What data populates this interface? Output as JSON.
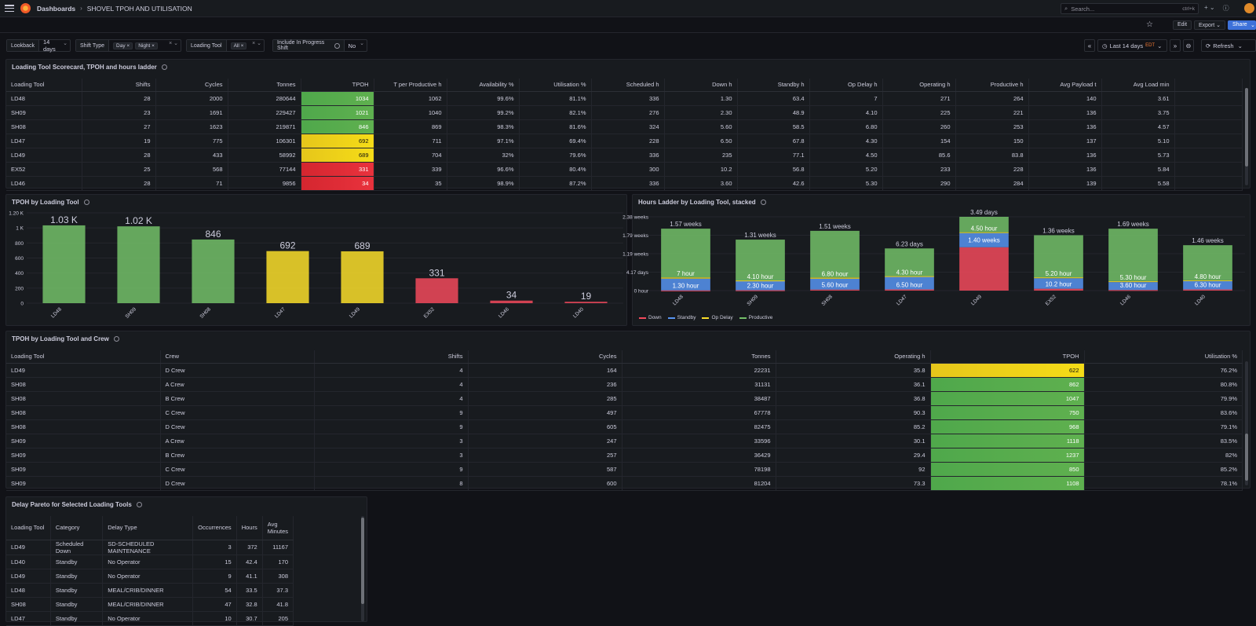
{
  "nav": {
    "crumb_root": "Dashboards",
    "crumb_page": "SHOVEL TPOH AND UTILISATION",
    "search_placeholder": "Search...",
    "search_kbd": "ctrl+k"
  },
  "toolbar": {
    "edit": "Edit",
    "export": "Export",
    "share": "Share"
  },
  "variables": {
    "lookback": {
      "label": "Lookback",
      "value": "14 days"
    },
    "shift_type": {
      "label": "Shift Type",
      "values": [
        "Day",
        "Night"
      ]
    },
    "loading_tool": {
      "label": "Loading Tool",
      "values": [
        "All"
      ]
    },
    "in_progress": {
      "label": "Include In Progress Shift",
      "value": "No"
    }
  },
  "time": {
    "range": "Last 14 days",
    "tz": "EDT",
    "refresh": "Refresh"
  },
  "scorecard": {
    "title": "Loading Tool Scorecard, TPOH and hours ladder",
    "columns": [
      "Loading Tool",
      "Shifts",
      "Cycles",
      "Tonnes",
      "TPOH",
      "T per Productive h",
      "Availability %",
      "Utilisation %",
      "Scheduled h",
      "Down h",
      "Standby h",
      "Op Delay h",
      "Operating h",
      "Productive h",
      "Avg Payload t",
      "Avg Load min"
    ],
    "rows": [
      [
        "LD48",
        "28",
        "2000",
        "280644",
        "1034",
        "1062",
        "99.6%",
        "81.1%",
        "336",
        "1.30",
        "63.4",
        "7",
        "271",
        "264",
        "140",
        "3.61"
      ],
      [
        "SH09",
        "23",
        "1691",
        "229427",
        "1021",
        "1040",
        "99.2%",
        "82.1%",
        "276",
        "2.30",
        "48.9",
        "4.10",
        "225",
        "221",
        "136",
        "3.75"
      ],
      [
        "SH08",
        "27",
        "1623",
        "219871",
        "846",
        "869",
        "98.3%",
        "81.6%",
        "324",
        "5.60",
        "58.5",
        "6.80",
        "260",
        "253",
        "136",
        "4.57"
      ],
      [
        "LD47",
        "19",
        "775",
        "106301",
        "692",
        "711",
        "97.1%",
        "69.4%",
        "228",
        "6.50",
        "67.8",
        "4.30",
        "154",
        "150",
        "137",
        "5.10"
      ],
      [
        "LD49",
        "28",
        "433",
        "58992",
        "689",
        "704",
        "32%",
        "79.6%",
        "336",
        "235",
        "77.1",
        "4.50",
        "85.6",
        "83.8",
        "136",
        "5.73"
      ],
      [
        "EX52",
        "25",
        "568",
        "77144",
        "331",
        "339",
        "96.6%",
        "80.4%",
        "300",
        "10.2",
        "56.8",
        "5.20",
        "233",
        "228",
        "136",
        "5.84"
      ],
      [
        "LD46",
        "28",
        "71",
        "9856",
        "34",
        "35",
        "98.9%",
        "87.2%",
        "336",
        "3.60",
        "42.6",
        "5.30",
        "290",
        "284",
        "139",
        "5.58"
      ]
    ],
    "tpoh_colors": [
      "g",
      "g",
      "g",
      "y",
      "y",
      "r",
      "r"
    ]
  },
  "tpoh_chart": {
    "title": "TPOH by Loading Tool",
    "chart_data": {
      "type": "bar",
      "categories": [
        "LD48",
        "SH09",
        "SH08",
        "LD47",
        "LD49",
        "EX52",
        "LD46",
        "LD40"
      ],
      "values": [
        1034,
        1021,
        846,
        692,
        689,
        331,
        34,
        19
      ],
      "labels": [
        "1.03 K",
        "1.02 K",
        "846",
        "692",
        "689",
        "331",
        "34",
        "19"
      ],
      "colors": [
        "#73bf69",
        "#73bf69",
        "#73bf69",
        "#fade2a",
        "#fade2a",
        "#f2495c",
        "#f2495c",
        "#f2495c"
      ],
      "yticks": [
        "0",
        "200",
        "400",
        "600",
        "800",
        "1 K",
        "1.20 K"
      ],
      "ylim": [
        0,
        1200
      ]
    }
  },
  "hours_chart": {
    "title": "Hours Ladder by Loading Tool, stacked",
    "chart_data": {
      "type": "bar",
      "stacked": true,
      "categories": [
        "LD48",
        "SH09",
        "SH08",
        "LD47",
        "LD49",
        "EX52",
        "LD46",
        "LD40"
      ],
      "series": [
        {
          "name": "Down",
          "color": "#f2495c",
          "values": [
            1.3,
            2.3,
            5.6,
            6.5,
            235,
            10.2,
            3.6,
            6.3
          ]
        },
        {
          "name": "Standby",
          "color": "#5794f2",
          "values": [
            63.4,
            48.9,
            58.5,
            67.8,
            77.1,
            56.8,
            42.6,
            45
          ]
        },
        {
          "name": "Op Delay",
          "color": "#fade2a",
          "values": [
            7,
            4.1,
            6.8,
            4.3,
            4.5,
            5.2,
            5.3,
            4.8
          ]
        },
        {
          "name": "Productive",
          "color": "#73bf69",
          "values": [
            264,
            221,
            253,
            150,
            83.8,
            228,
            284,
            190
          ]
        }
      ],
      "totals": [
        "1.57 weeks",
        "1.31 weeks",
        "1.51 weeks",
        "6.23 days",
        "3.49 days",
        "1.36 weeks",
        "1.69 weeks",
        "1.46 weeks"
      ],
      "seg_labels": [
        [
          "1.30 hour",
          "",
          "7 hour"
        ],
        [
          "2.30 hour",
          "",
          "4.10 hour"
        ],
        [
          "5.60 hour",
          "",
          "6.80 hour"
        ],
        [
          "6.50 hour",
          "",
          "4.30 hour"
        ],
        [
          "",
          "1.40 weeks",
          "4.50 hour"
        ],
        [
          "10.2 hour",
          "",
          "5.20 hour"
        ],
        [
          "3.60 hour",
          "",
          "5.30 hour"
        ],
        [
          "6.30 hour",
          "",
          "4.80 hour"
        ]
      ],
      "yticks": [
        "0 hour",
        "4.17 days",
        "1.19 weeks",
        "1.79 weeks",
        "2.38 weeks"
      ],
      "ylim": [
        0,
        400
      ]
    }
  },
  "crew": {
    "title": "TPOH by Loading Tool and Crew",
    "columns": [
      "Loading Tool",
      "Crew",
      "Shifts",
      "Cycles",
      "Tonnes",
      "Operating h",
      "TPOH",
      "Utilisation %"
    ],
    "rows": [
      [
        "LD49",
        "D Crew",
        "4",
        "164",
        "22231",
        "35.8",
        "622",
        "76.2%"
      ],
      [
        "SH08",
        "A Crew",
        "4",
        "236",
        "31131",
        "36.1",
        "862",
        "80.8%"
      ],
      [
        "SH08",
        "B Crew",
        "4",
        "285",
        "38487",
        "36.8",
        "1047",
        "79.9%"
      ],
      [
        "SH08",
        "C Crew",
        "9",
        "497",
        "67778",
        "90.3",
        "750",
        "83.6%"
      ],
      [
        "SH08",
        "D Crew",
        "9",
        "605",
        "82475",
        "85.2",
        "968",
        "79.1%"
      ],
      [
        "SH09",
        "A Crew",
        "3",
        "247",
        "33596",
        "30.1",
        "1118",
        "83.5%"
      ],
      [
        "SH09",
        "B Crew",
        "3",
        "257",
        "36429",
        "29.4",
        "1237",
        "82%"
      ],
      [
        "SH09",
        "C Crew",
        "9",
        "587",
        "78198",
        "92",
        "850",
        "85.2%"
      ],
      [
        "SH09",
        "D Crew",
        "8",
        "600",
        "81204",
        "73.3",
        "1108",
        "78.1%"
      ]
    ],
    "tpoh_colors": [
      "y",
      "g",
      "g",
      "g",
      "g",
      "g",
      "g",
      "g",
      "g"
    ]
  },
  "pareto": {
    "title": "Delay Pareto for Selected Loading Tools",
    "columns": [
      "Loading Tool",
      "Category",
      "Delay Type",
      "Occurrences",
      "Hours",
      "Avg Minutes"
    ],
    "rows": [
      [
        "LD49",
        "Scheduled Down",
        "SD-SCHEDULED MAINTENANCE",
        "3",
        "372",
        "11167"
      ],
      [
        "LD40",
        "Standby",
        "No Operator",
        "15",
        "42.4",
        "170"
      ],
      [
        "LD49",
        "Standby",
        "No Operator",
        "9",
        "41.1",
        "308"
      ],
      [
        "LD48",
        "Standby",
        "MEAL/CRIB/DINNER",
        "54",
        "33.5",
        "37.3"
      ],
      [
        "SH08",
        "Standby",
        "MEAL/CRIB/DINNER",
        "47",
        "32.8",
        "41.8"
      ],
      [
        "LD47",
        "Standby",
        "No Operator",
        "10",
        "30.7",
        "205"
      ]
    ]
  }
}
